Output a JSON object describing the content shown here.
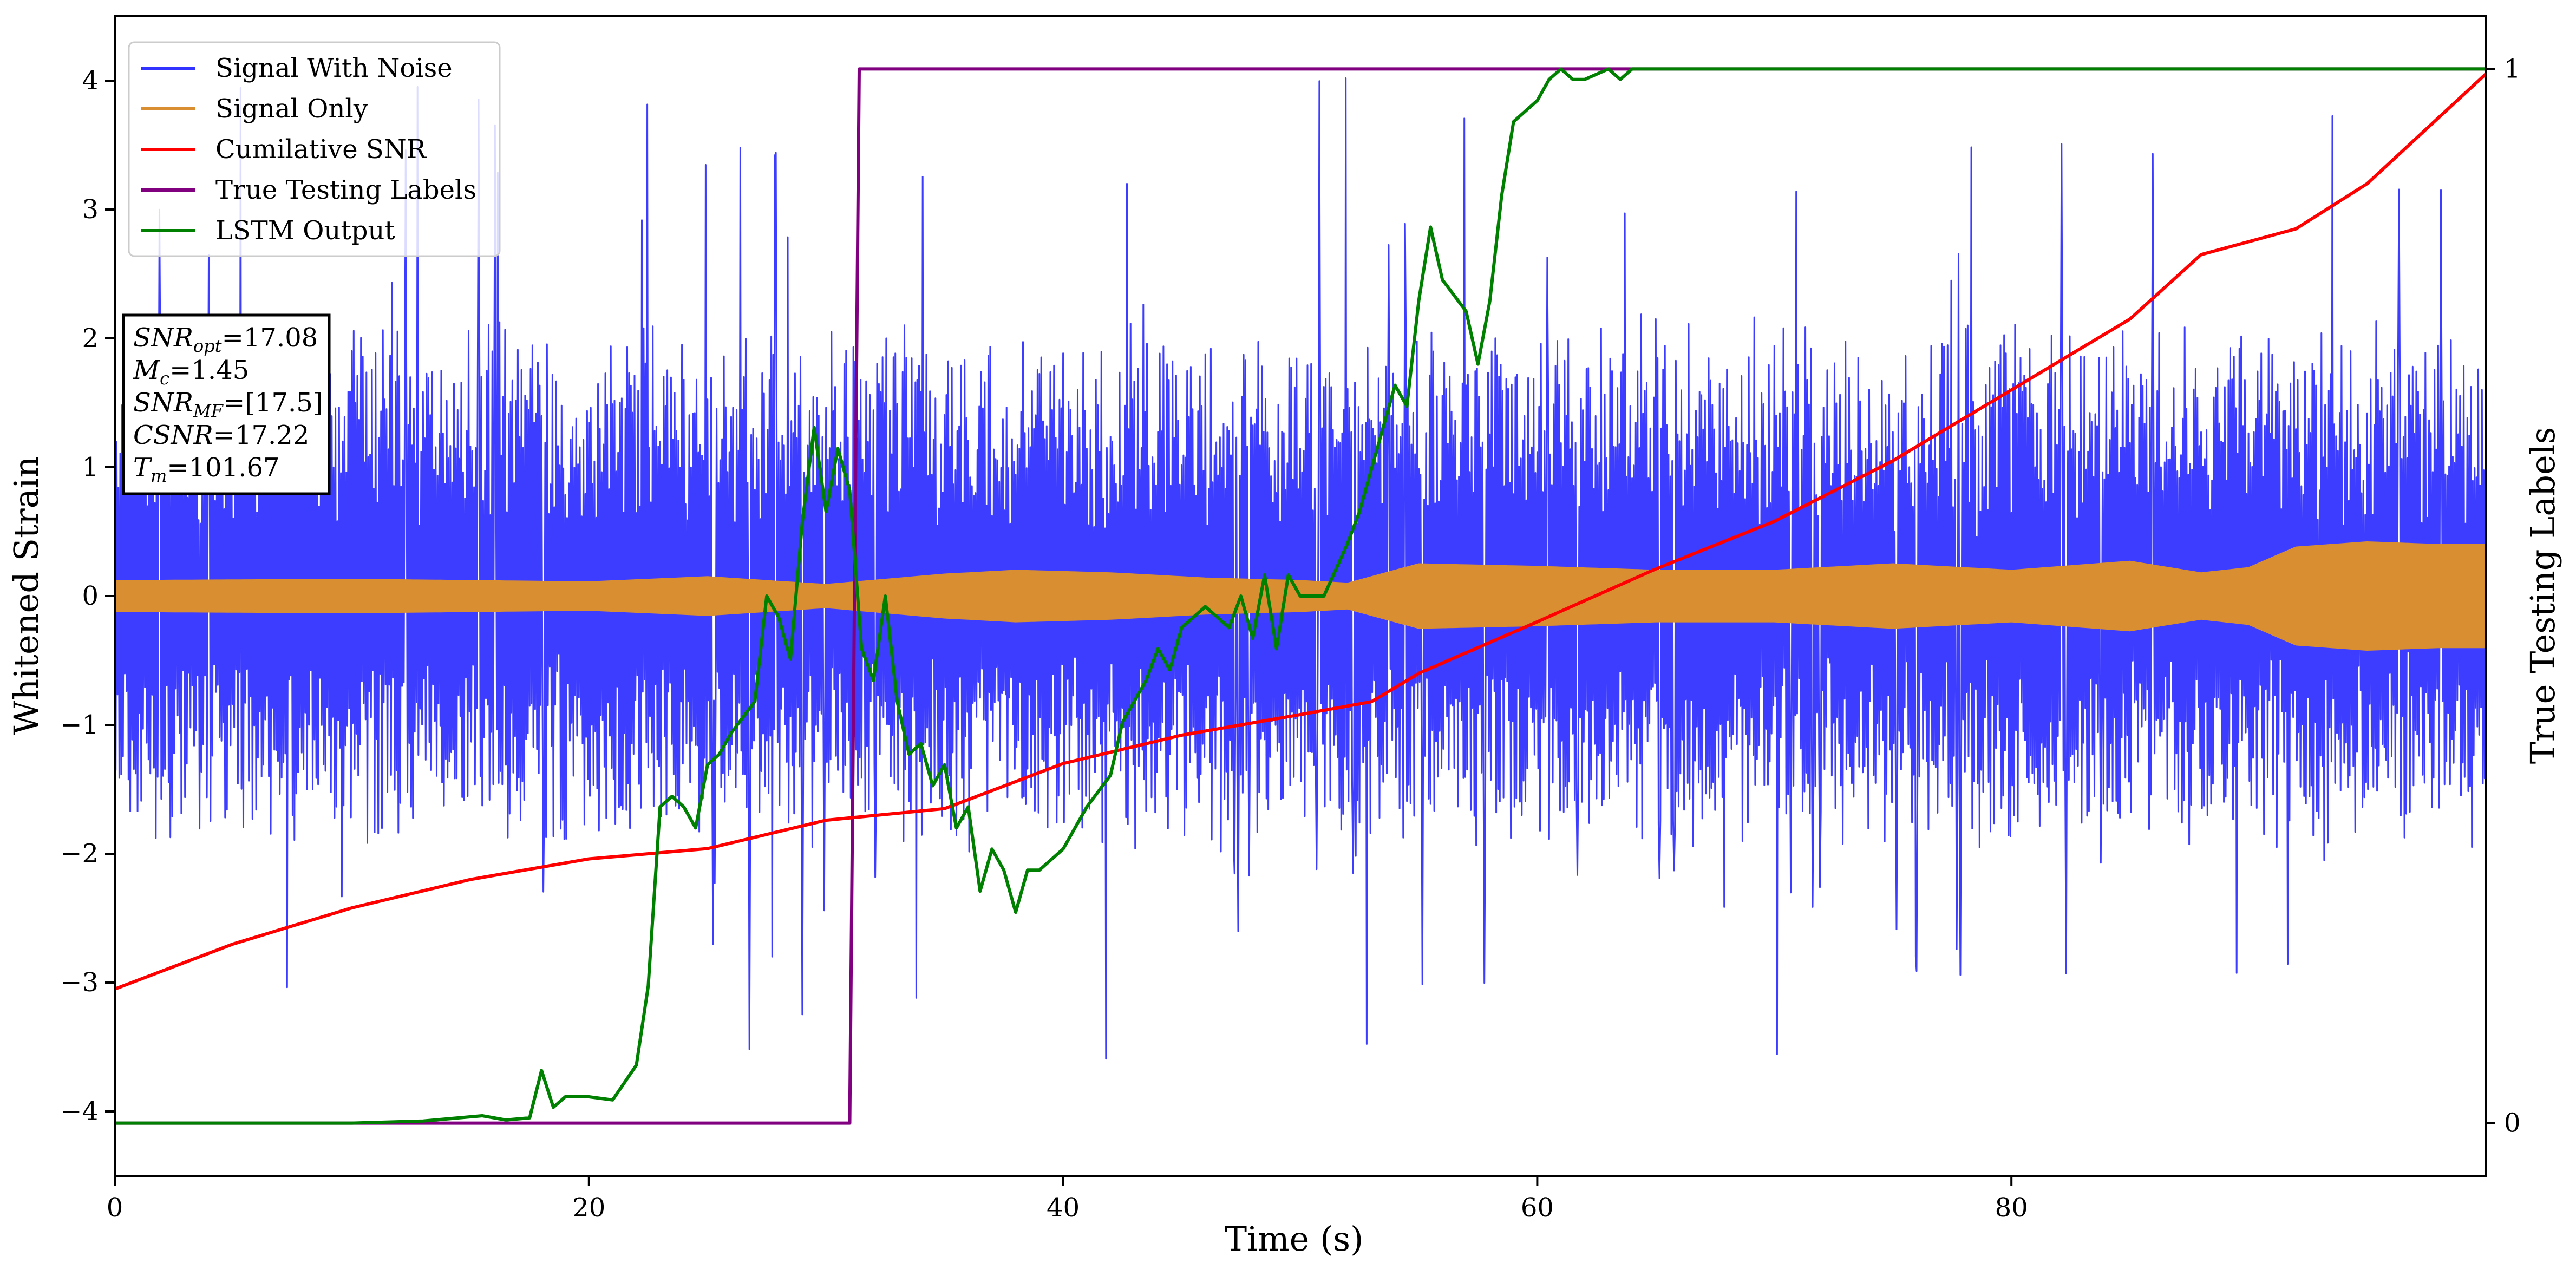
{
  "chart_data": {
    "type": "line",
    "xlabel": "Time (s)",
    "ylabel_left": "Whitened Strain",
    "ylabel_right": "True Testing Labels",
    "xlim": [
      0,
      100
    ],
    "ylim_left": [
      -4.5,
      4.5
    ],
    "ylim_right": [
      -0.05,
      1.05
    ],
    "x_ticks": [
      0,
      20,
      40,
      60,
      80
    ],
    "x_tick_labels": [
      "0",
      "20",
      "40",
      "60",
      "80"
    ],
    "y_left_ticks": [
      -4,
      -3,
      -2,
      -1,
      0,
      1,
      2,
      3,
      4
    ],
    "y_left_tick_labels": [
      "−4",
      "−3",
      "−2",
      "−1",
      "0",
      "1",
      "2",
      "3",
      "4"
    ],
    "y_right_ticks": [
      0,
      1
    ],
    "y_right_tick_labels": [
      "0",
      "1"
    ],
    "grid": false,
    "legend_position": "top-left",
    "series": [
      {
        "name": "Signal With Noise",
        "color": "#3333ff",
        "axis": "left",
        "kind": "noise",
        "typical_min": -1.6,
        "typical_max": 1.7,
        "peak_min": -3.6,
        "peak_max": 4.1
      },
      {
        "name": "Signal Only",
        "color": "#d98e32",
        "axis": "left",
        "kind": "envelope",
        "x": [
          0,
          10,
          20,
          25,
          30,
          35,
          38,
          42,
          46,
          50,
          52,
          55,
          60,
          65,
          70,
          75,
          80,
          85,
          88,
          90,
          92,
          95,
          98,
          100
        ],
        "amplitude": [
          0.12,
          0.13,
          0.11,
          0.15,
          0.09,
          0.17,
          0.2,
          0.18,
          0.14,
          0.12,
          0.1,
          0.25,
          0.23,
          0.2,
          0.2,
          0.25,
          0.2,
          0.27,
          0.18,
          0.22,
          0.38,
          0.42,
          0.4,
          0.4
        ]
      },
      {
        "name": "Cumilative SNR",
        "color": "#ff0000",
        "axis": "left",
        "x": [
          0,
          5,
          10,
          15,
          20,
          25,
          30,
          35,
          40,
          45,
          50,
          53,
          55,
          60,
          65,
          70,
          75,
          80,
          85,
          88,
          90,
          92,
          95,
          100
        ],
        "y": [
          -3.05,
          -2.7,
          -2.42,
          -2.2,
          -2.04,
          -1.96,
          -1.74,
          -1.65,
          -1.3,
          -1.08,
          -0.92,
          -0.82,
          -0.6,
          -0.2,
          0.21,
          0.58,
          1.05,
          1.6,
          2.15,
          2.65,
          2.75,
          2.85,
          3.2,
          4.05
        ]
      },
      {
        "name": "True Testing Labels",
        "color": "#800080",
        "axis": "right",
        "x": [
          0,
          31,
          31.4,
          100
        ],
        "y": [
          0,
          0,
          1,
          1
        ]
      },
      {
        "name": "LSTM Output",
        "color": "#008000",
        "axis": "right",
        "x": [
          0,
          10,
          13,
          15.5,
          16.5,
          17.5,
          18,
          18.5,
          19,
          20,
          21,
          22,
          22.5,
          23,
          23.5,
          24,
          24.5,
          25,
          25.5,
          26,
          27,
          27.5,
          28,
          28.5,
          29,
          29.5,
          30,
          30.5,
          31,
          31.5,
          32,
          32.5,
          33,
          33.5,
          34,
          34.5,
          35,
          35.5,
          36,
          36.5,
          37,
          37.5,
          38,
          38.5,
          39,
          40,
          41,
          42,
          42.5,
          43,
          43.5,
          44,
          44.5,
          45,
          46,
          47,
          47.5,
          48,
          48.5,
          49,
          49.5,
          50,
          51,
          52,
          52.5,
          53,
          53.5,
          54,
          54.5,
          55,
          55.5,
          56,
          57,
          57.5,
          58,
          58.5,
          59,
          60,
          60.5,
          61,
          61.5,
          62,
          62.5,
          63,
          63.5,
          64,
          65,
          70,
          100
        ],
        "y": [
          0,
          0,
          0.002,
          0.007,
          0.003,
          0.005,
          0.05,
          0.015,
          0.025,
          0.025,
          0.022,
          0.055,
          0.13,
          0.3,
          0.31,
          0.3,
          0.28,
          0.34,
          0.35,
          0.37,
          0.4,
          0.5,
          0.48,
          0.44,
          0.57,
          0.66,
          0.58,
          0.64,
          0.6,
          0.45,
          0.42,
          0.5,
          0.4,
          0.35,
          0.36,
          0.32,
          0.34,
          0.28,
          0.3,
          0.22,
          0.26,
          0.24,
          0.2,
          0.24,
          0.24,
          0.26,
          0.3,
          0.33,
          0.38,
          0.4,
          0.42,
          0.45,
          0.43,
          0.47,
          0.49,
          0.47,
          0.5,
          0.46,
          0.52,
          0.45,
          0.52,
          0.5,
          0.5,
          0.55,
          0.58,
          0.62,
          0.66,
          0.7,
          0.68,
          0.78,
          0.85,
          0.8,
          0.77,
          0.72,
          0.78,
          0.88,
          0.95,
          0.97,
          0.99,
          1.0,
          0.99,
          0.99,
          0.995,
          1.0,
          0.99,
          1.0,
          1.0,
          1.0,
          1.0
        ]
      }
    ]
  },
  "annotation": {
    "lines": [
      {
        "main": "SNR",
        "sub": "opt",
        "rest": "=17.08"
      },
      {
        "main": "M",
        "sub": "c",
        "rest": "=1.45"
      },
      {
        "main": "SNR",
        "sub": "MF",
        "rest": "=[17.5]"
      },
      {
        "main": "CSNR",
        "sub": "",
        "rest": "=17.22"
      },
      {
        "main": "T",
        "sub": "m",
        "rest": "=101.67"
      }
    ]
  }
}
